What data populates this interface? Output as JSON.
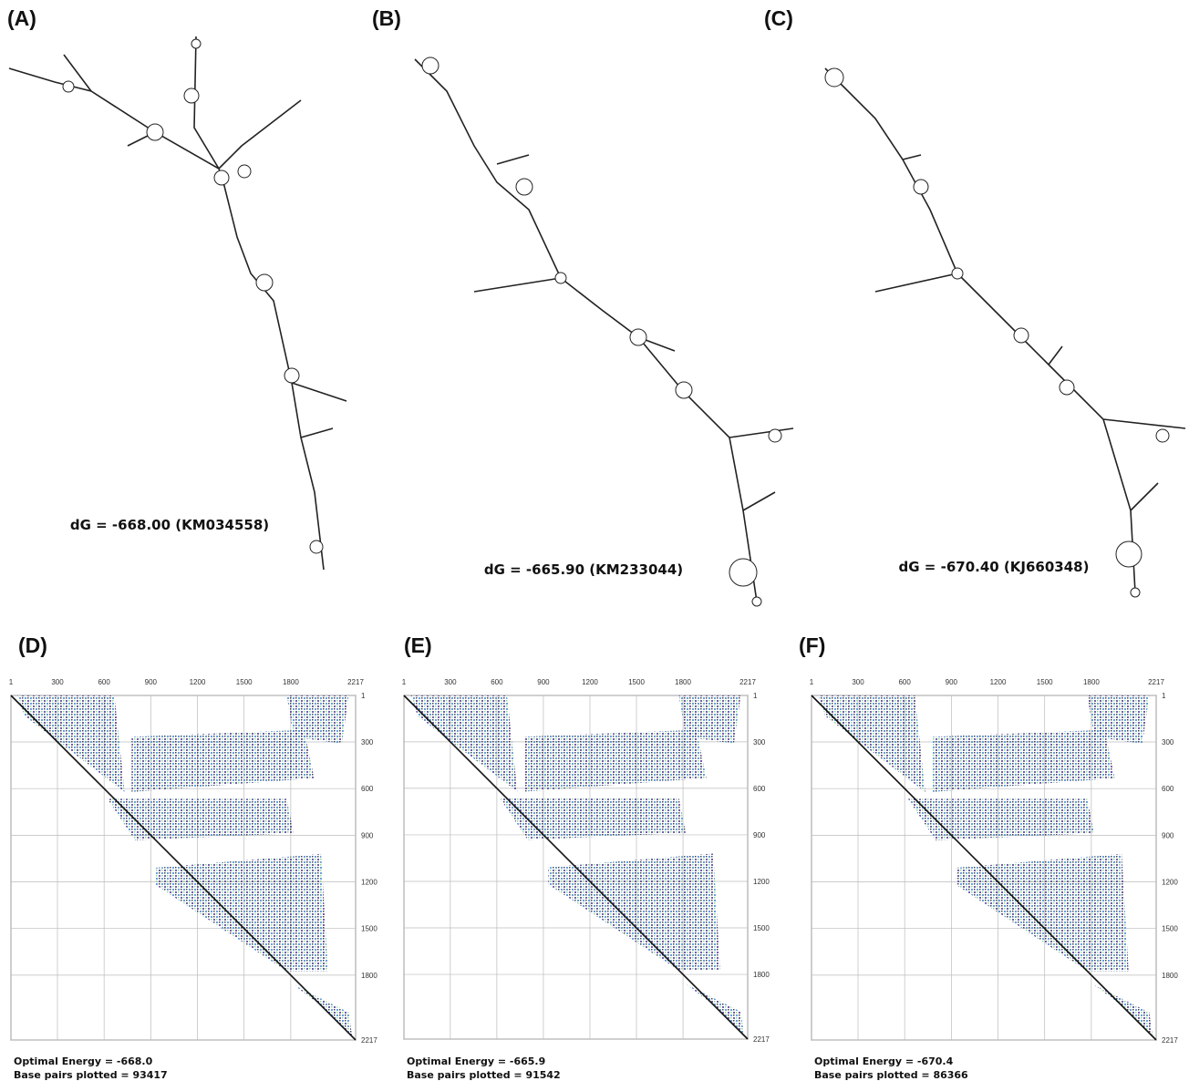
{
  "panels_top": [
    {
      "label": "(A)",
      "caption": "dG = -668.00 (KM034558)"
    },
    {
      "label": "(B)",
      "caption": "dG = -665.90 (KM233044)"
    },
    {
      "label": "(C)",
      "caption": "dG = -670.40 (KJ660348)"
    }
  ],
  "panels_bottom": [
    {
      "label": "(D)",
      "ticks": [
        1,
        300,
        600,
        900,
        1200,
        1500,
        1800,
        2217
      ],
      "energy": "Optimal Energy = -668.0",
      "base_pairs": "Base pairs plotted = 93417"
    },
    {
      "label": "(E)",
      "ticks": [
        1,
        300,
        600,
        900,
        1200,
        1500,
        1800,
        2217
      ],
      "energy": "Optimal Energy = -665.9",
      "base_pairs": "Base pairs plotted = 91542"
    },
    {
      "label": "(F)",
      "ticks": [
        1,
        300,
        600,
        900,
        1200,
        1500,
        1800,
        2217
      ],
      "energy": "Optimal Energy = -670.4",
      "base_pairs": "Base pairs plotted = 86366"
    }
  ]
}
